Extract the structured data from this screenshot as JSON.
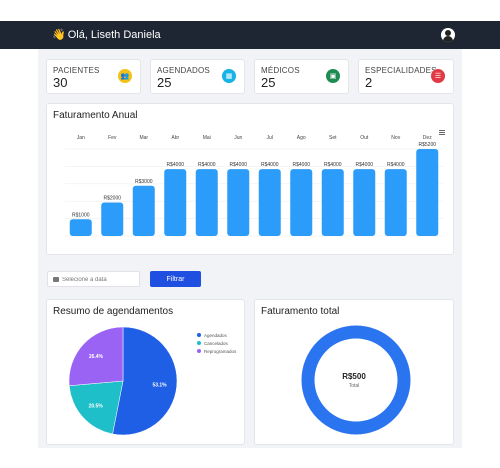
{
  "header": {
    "greeting": "Olá, Liseth Daniela",
    "wave_icon": "waving-hand-icon",
    "avatar_icon": "user-avatar-icon"
  },
  "stats": [
    {
      "label": "PACIENTES",
      "value": "30",
      "color": "#f4c114",
      "icon": "users-icon",
      "glyph": "👥"
    },
    {
      "label": "AGENDADOS",
      "value": "25",
      "color": "#17b3e6",
      "icon": "calendar-icon",
      "glyph": "▦"
    },
    {
      "label": "MÉDICOS",
      "value": "25",
      "color": "#1e8c52",
      "icon": "doctor-icon",
      "glyph": "▣"
    },
    {
      "label": "ESPECIALIDADES",
      "value": "2",
      "color": "#e13a47",
      "icon": "list-icon",
      "glyph": "☰"
    }
  ],
  "annual": {
    "title": "Faturamento Anual",
    "chart_data": {
      "type": "bar",
      "categories": [
        "Jan",
        "Fev",
        "Mar",
        "Abr",
        "Mai",
        "Jun",
        "Jul",
        "Ago",
        "Set",
        "Out",
        "Nov",
        "Dez"
      ],
      "values": [
        1000,
        2000,
        3000,
        4000,
        4000,
        4000,
        4000,
        4000,
        4000,
        4000,
        4000,
        5200
      ],
      "labels": [
        "R$1000",
        "R$2000",
        "R$3000",
        "R$4000",
        "R$4000",
        "R$4000",
        "R$4000",
        "R$4000",
        "R$4000",
        "R$4000",
        "R$4000",
        "R$5200"
      ],
      "ylim": [
        0,
        5200
      ],
      "color": "#2b9cf9",
      "grid": true
    }
  },
  "filter": {
    "placeholder": "Selecione a data",
    "button_label": "Filtrar"
  },
  "summary": {
    "title": "Resumo de agendamentos",
    "chart_data": {
      "type": "pie",
      "categories": [
        "Agendados",
        "Cancelados",
        "Reprogramados"
      ],
      "values": [
        53.1,
        20.5,
        26.4
      ],
      "labels": [
        "53.1%",
        "20.5%",
        "26.4%"
      ],
      "colors": [
        "#1f5fe6",
        "#1fbfc9",
        "#9a63f3"
      ],
      "legend": "right"
    }
  },
  "total": {
    "title": "Faturamento total",
    "value": "R$500",
    "caption": "Total",
    "chart_data": {
      "type": "pie",
      "categories": [
        "Total"
      ],
      "values": [
        500
      ],
      "color": "#2a74ef"
    }
  }
}
